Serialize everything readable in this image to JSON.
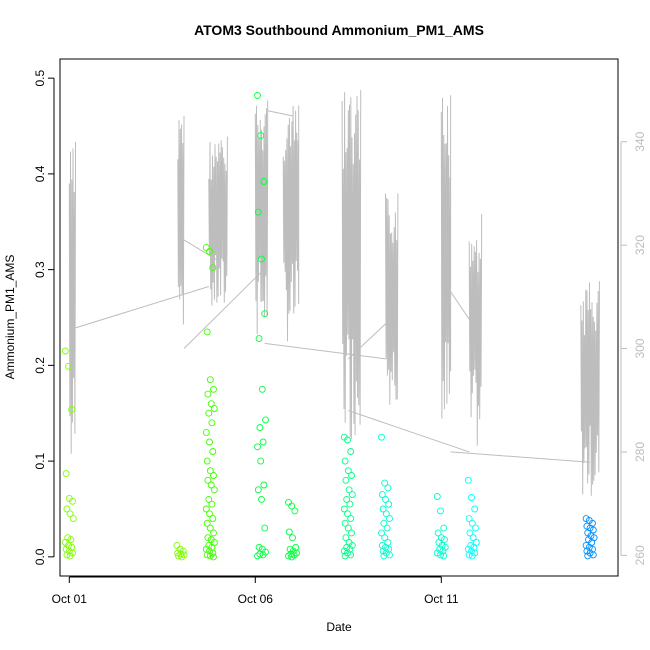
{
  "chart_data": {
    "type": "scatter",
    "title": "ATOM3 Southbound Ammonium_PM1_AMS",
    "xlabel": "Date",
    "ylabel": "Ammonium_PM1_AMS",
    "x_axis_type": "date",
    "xlim": [
      "2017-09-30T18:00",
      "2017-10-15T18:00"
    ],
    "x_ticks": [
      {
        "date": "2017-10-01",
        "label": "Oct 01"
      },
      {
        "date": "2017-10-06",
        "label": "Oct 06"
      },
      {
        "date": "2017-10-11",
        "label": "Oct 11"
      }
    ],
    "ylim": [
      -0.02,
      0.52
    ],
    "y_ticks": [
      0.0,
      0.1,
      0.2,
      0.3,
      0.4,
      0.5
    ],
    "y2lim": [
      256,
      356
    ],
    "y2_ticks": [
      260,
      280,
      300,
      320,
      340
    ],
    "y2_axis_color": "#bdbdbd",
    "points_note": "open circles, color varies with date from yellow-green to blue",
    "point_colors": [
      "#7fff00",
      "#40ff00",
      "#00ff40",
      "#00ff88",
      "#00ffcc",
      "#00ffff",
      "#0090ff"
    ],
    "line_color": "#bdbdbd",
    "series": [
      {
        "flight_points": [
          {
            "x": "2017-10-01T00:00",
            "y": [
              0.215,
              0.199,
              0.154,
              0.087,
              0.061,
              0.058,
              0.05,
              0.045,
              0.04,
              0.02,
              0.018,
              0.015,
              0.012,
              0.01,
              0.008,
              0.006,
              0.004,
              0.002,
              0.001
            ]
          },
          {
            "x": "2017-10-04T00:00",
            "y": [
              0.012,
              0.008,
              0.006,
              0.004,
              0.003,
              0.002,
              0.001,
              0.0
            ]
          },
          {
            "x": "2017-10-04T19:00",
            "y": [
              0.323,
              0.319,
              0.302,
              0.235,
              0.185,
              0.175,
              0.17,
              0.16,
              0.155,
              0.15,
              0.14,
              0.13,
              0.12,
              0.11,
              0.1,
              0.09,
              0.085,
              0.08,
              0.075,
              0.07,
              0.06,
              0.055,
              0.05,
              0.045,
              0.04,
              0.035,
              0.03,
              0.025,
              0.02,
              0.018,
              0.015,
              0.012,
              0.01,
              0.008,
              0.006,
              0.004,
              0.002,
              0.001,
              0.0
            ]
          },
          {
            "x": "2017-10-06T04:00",
            "y": [
              0.482,
              0.44,
              0.392,
              0.36,
              0.311,
              0.254,
              0.228,
              0.175,
              0.143,
              0.135,
              0.12,
              0.115,
              0.1,
              0.075,
              0.07,
              0.06,
              0.03,
              0.01,
              0.008,
              0.005,
              0.003,
              0.002,
              0.001
            ]
          },
          {
            "x": "2017-10-07T00:00",
            "y": [
              0.057,
              0.053,
              0.048,
              0.026,
              0.02,
              0.01,
              0.008,
              0.006,
              0.004,
              0.003,
              0.002,
              0.001,
              0.0
            ]
          },
          {
            "x": "2017-10-08T12:00",
            "y": [
              0.125,
              0.122,
              0.11,
              0.1,
              0.09,
              0.085,
              0.08,
              0.07,
              0.065,
              0.06,
              0.055,
              0.05,
              0.045,
              0.04,
              0.035,
              0.03,
              0.025,
              0.02,
              0.015,
              0.012,
              0.01,
              0.008,
              0.006,
              0.004,
              0.002,
              0.001
            ]
          },
          {
            "x": "2017-10-09T12:00",
            "y": [
              0.125,
              0.077,
              0.072,
              0.065,
              0.06,
              0.055,
              0.05,
              0.045,
              0.04,
              0.035,
              0.03,
              0.025,
              0.02,
              0.015,
              0.012,
              0.01,
              0.008,
              0.006,
              0.004,
              0.002,
              0.001
            ]
          },
          {
            "x": "2017-10-11T00:00",
            "y": [
              0.063,
              0.048,
              0.03,
              0.025,
              0.02,
              0.018,
              0.015,
              0.012,
              0.01,
              0.008,
              0.006,
              0.004,
              0.002,
              0.001
            ]
          },
          {
            "x": "2017-10-11T20:00",
            "y": [
              0.08,
              0.062,
              0.05,
              0.04,
              0.035,
              0.03,
              0.025,
              0.02,
              0.015,
              0.012,
              0.01,
              0.008,
              0.006,
              0.004,
              0.002,
              0.001
            ]
          },
          {
            "x": "2017-10-15T00:00",
            "y": [
              0.04,
              0.038,
              0.035,
              0.032,
              0.03,
              0.028,
              0.025,
              0.022,
              0.02,
              0.018,
              0.015,
              0.012,
              0.01,
              0.008,
              0.006,
              0.004,
              0.002,
              0.001
            ]
          }
        ]
      },
      {
        "axis": "right",
        "flight_traces": [
          {
            "x0": "2017-10-01T00:00",
            "x1": "2017-10-01T04:00",
            "min": 274,
            "max": 340
          },
          {
            "x0": "2017-10-03T22:00",
            "x1": "2017-10-04T02:00",
            "min": 302,
            "max": 345
          },
          {
            "x0": "2017-10-04T18:00",
            "x1": "2017-10-05T06:00",
            "min": 306,
            "max": 341
          },
          {
            "x0": "2017-10-06T00:00",
            "x1": "2017-10-06T08:00",
            "min": 302,
            "max": 348
          },
          {
            "x0": "2017-10-06T18:00",
            "x1": "2017-10-07T04:00",
            "min": 301,
            "max": 347
          },
          {
            "x0": "2017-10-08T08:00",
            "x1": "2017-10-08T20:00",
            "min": 282,
            "max": 350
          },
          {
            "x0": "2017-10-09T12:00",
            "x1": "2017-10-09T20:00",
            "min": 289,
            "max": 330
          },
          {
            "x0": "2017-10-11T00:00",
            "x1": "2017-10-11T06:00",
            "min": 279,
            "max": 349
          },
          {
            "x0": "2017-10-11T18:00",
            "x1": "2017-10-12T02:00",
            "min": 280,
            "max": 326
          },
          {
            "x0": "2017-10-14T18:00",
            "x1": "2017-10-15T06:00",
            "min": 271,
            "max": 313
          }
        ],
        "transit_lines": [
          [
            [
              "2017-10-01T04:00",
              304
            ],
            [
              "2017-10-04T18:00",
              312
            ]
          ],
          [
            [
              "2017-10-04T02:00",
              321
            ],
            [
              "2017-10-05T00:00",
              317
            ]
          ],
          [
            [
              "2017-10-04T02:00",
              300
            ],
            [
              "2017-10-06T08:00",
              316
            ]
          ],
          [
            [
              "2017-10-06T06:00",
              301
            ],
            [
              "2017-10-09T12:00",
              298
            ]
          ],
          [
            [
              "2017-10-06T08:00",
              346
            ],
            [
              "2017-10-07T00:00",
              345
            ]
          ],
          [
            [
              "2017-10-08T12:00",
              288
            ],
            [
              "2017-10-11T18:00",
              280
            ]
          ],
          [
            [
              "2017-10-08T12:00",
              298
            ],
            [
              "2017-10-09T20:00",
              307
            ]
          ],
          [
            [
              "2017-10-11T06:00",
              311
            ],
            [
              "2017-10-12T00:00",
              303
            ]
          ],
          [
            [
              "2017-10-11T06:00",
              280
            ],
            [
              "2017-10-15T00:00",
              278
            ]
          ]
        ]
      }
    ]
  }
}
